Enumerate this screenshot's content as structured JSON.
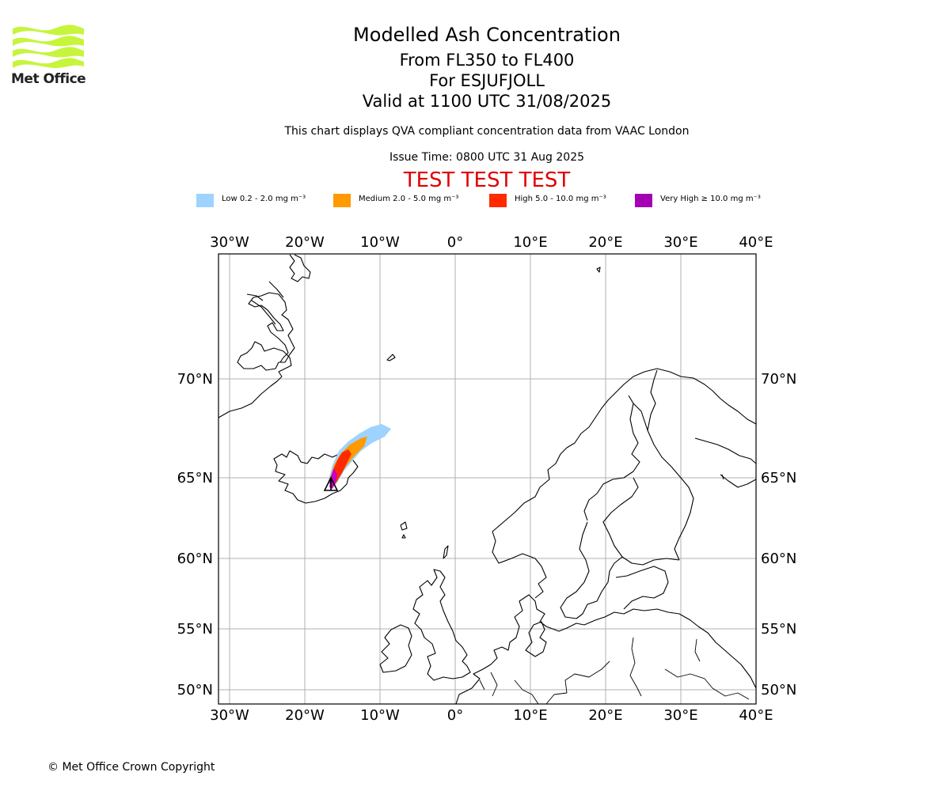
{
  "header": {
    "title": "Modelled Ash Concentration",
    "level_range": "From FL350 to FL400",
    "volcano": "For ESJUFJOLL",
    "valid_time": "Valid at 1100 UTC 31/08/2025",
    "description": "This chart displays QVA compliant concentration data from VAAC London",
    "issue_time": "Issue Time: 0800 UTC 31 Aug 2025",
    "test_banner": "TEST TEST TEST"
  },
  "logo": {
    "text": "Met Office"
  },
  "legend": [
    {
      "label": "Low 0.2 - 2.0 mg m⁻³",
      "color": "#9fd3ff"
    },
    {
      "label": "Medium 2.0 - 5.0 mg m⁻³",
      "color": "#ff9a00"
    },
    {
      "label": "High 5.0 - 10.0 mg m⁻³",
      "color": "#ff2a00"
    },
    {
      "label": "Very High ≥ 10.0 mg m⁻³",
      "color": "#a400b4"
    }
  ],
  "map": {
    "lon_ticks": [
      "30°W",
      "20°W",
      "10°W",
      "0°",
      "10°E",
      "20°E",
      "30°E",
      "40°E"
    ],
    "lat_ticks": [
      "70°N",
      "65°N",
      "60°N",
      "55°N",
      "50°N"
    ],
    "grid": true,
    "colors": {
      "frame": "#000000",
      "grid": "#b0b0b0",
      "coast": "#000000",
      "test": "#e00000"
    }
  },
  "footer": {
    "copyright": "© Met Office Crown Copyright"
  }
}
